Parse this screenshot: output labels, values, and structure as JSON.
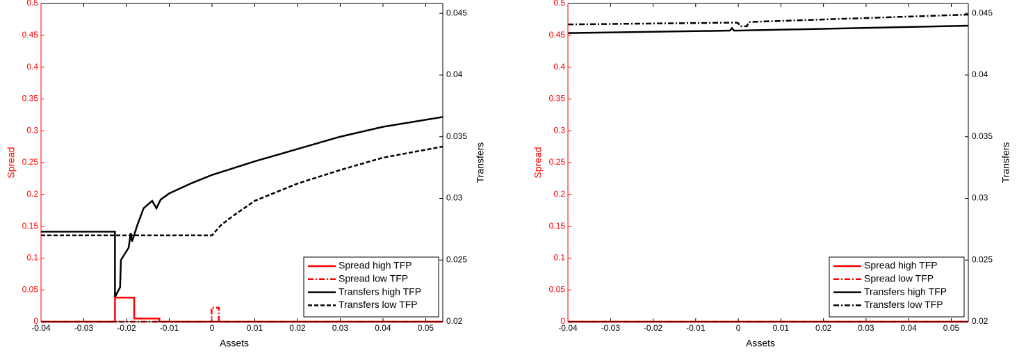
{
  "chart_data": [
    {
      "type": "line",
      "xlabel": "Assets",
      "ylabel": "Spread",
      "y2label": "Transfers",
      "ycolor": "#ff0000",
      "y2color": "#000000",
      "xlim": [
        -0.04,
        0.054
      ],
      "ylim": [
        0,
        0.5
      ],
      "y2lim": [
        0.02,
        0.0458
      ],
      "xticks": [
        -0.04,
        -0.03,
        -0.02,
        -0.01,
        0,
        0.01,
        0.02,
        0.03,
        0.04,
        0.05
      ],
      "yticks": [
        0,
        0.05,
        0.1,
        0.15,
        0.2,
        0.25,
        0.3,
        0.35,
        0.4,
        0.45,
        0.5
      ],
      "y2ticks": [
        0.02,
        0.025,
        0.03,
        0.035,
        0.04,
        0.045
      ],
      "legend": "lower right",
      "series": [
        {
          "name": "Spread high TFP",
          "color": "#ff0000",
          "linestyle": "solid",
          "x": [
            -0.04,
            -0.0227,
            -0.0227,
            -0.0182,
            -0.0182,
            -0.0123,
            -0.0123,
            0.054
          ],
          "values": [
            0,
            0,
            0.038,
            0.038,
            0.005,
            0.005,
            0,
            0
          ]
        },
        {
          "name": "Spread low TFP",
          "color": "#ff0000",
          "linestyle": "dashdot",
          "x": [
            -0.04,
            -0.0001,
            -0.0001,
            0.0016,
            0.0016,
            0.054
          ],
          "values": [
            0,
            0,
            0.022,
            0.022,
            0,
            0
          ]
        },
        {
          "name": "Transfers high TFP",
          "color": "#000000",
          "linestyle": "solid",
          "axis": "y2",
          "x": [
            -0.04,
            -0.0227,
            -0.0227,
            -0.0215,
            -0.0213,
            -0.0195,
            -0.019,
            -0.0187,
            -0.0175,
            -0.016,
            -0.014,
            -0.013,
            -0.012,
            -0.01,
            -0.005,
            0,
            0.01,
            0.02,
            0.03,
            0.04,
            0.054
          ],
          "values": [
            0.0273,
            0.0273,
            0.022,
            0.0228,
            0.025,
            0.026,
            0.0272,
            0.0265,
            0.0278,
            0.0292,
            0.0298,
            0.0292,
            0.0299,
            0.0304,
            0.0312,
            0.0319,
            0.033,
            0.034,
            0.035,
            0.0358,
            0.0366
          ]
        },
        {
          "name": "Transfers low TFP",
          "color": "#000000",
          "linestyle": "dashed",
          "axis": "y2",
          "x": [
            -0.04,
            0,
            0.002,
            0.005,
            0.01,
            0.02,
            0.03,
            0.04,
            0.054
          ],
          "values": [
            0.027,
            0.027,
            0.0278,
            0.0286,
            0.0298,
            0.0312,
            0.0323,
            0.0333,
            0.0342
          ]
        }
      ]
    },
    {
      "type": "line",
      "xlabel": "Assets",
      "ylabel": "Spread",
      "y2label": "Transfers",
      "ycolor": "#ff0000",
      "y2color": "#000000",
      "xlim": [
        -0.04,
        0.054
      ],
      "ylim": [
        0,
        0.5
      ],
      "y2lim": [
        0.02,
        0.0458
      ],
      "xticks": [
        -0.04,
        -0.03,
        -0.02,
        -0.01,
        0,
        0.01,
        0.02,
        0.03,
        0.04,
        0.05
      ],
      "yticks": [
        0,
        0.05,
        0.1,
        0.15,
        0.2,
        0.25,
        0.3,
        0.35,
        0.4,
        0.45,
        0.5
      ],
      "y2ticks": [
        0.02,
        0.025,
        0.03,
        0.035,
        0.04,
        0.045
      ],
      "legend": "lower right",
      "series": [
        {
          "name": "Spread high TFP",
          "color": "#ff0000",
          "linestyle": "solid",
          "x": [
            -0.04,
            0.054
          ],
          "values": [
            0,
            0
          ]
        },
        {
          "name": "Spread low TFP",
          "color": "#ff0000",
          "linestyle": "dashdot",
          "x": [
            -0.04,
            0.054
          ],
          "values": [
            0,
            0
          ]
        },
        {
          "name": "Transfers high TFP",
          "color": "#000000",
          "linestyle": "solid",
          "axis": "y2",
          "x": [
            -0.04,
            -0.002,
            -0.0015,
            -0.001,
            0,
            0.054
          ],
          "values": [
            0.0434,
            0.0436,
            0.0438,
            0.0436,
            0.0436,
            0.044
          ]
        },
        {
          "name": "Transfers low TFP",
          "color": "#000000",
          "linestyle": "dashdot",
          "axis": "y2",
          "x": [
            -0.04,
            -0.0005,
            0,
            0.0005,
            0.002,
            0.0025,
            0.054
          ],
          "values": [
            0.0441,
            0.04425,
            0.0442,
            0.04395,
            0.04395,
            0.0443,
            0.0449
          ]
        }
      ]
    }
  ]
}
